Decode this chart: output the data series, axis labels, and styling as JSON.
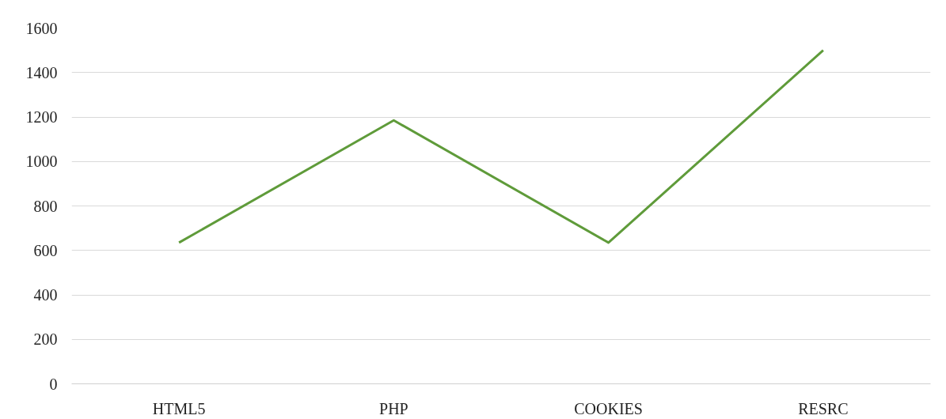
{
  "chart_data": {
    "type": "line",
    "categories": [
      "HTML5",
      "PHP",
      "COOKIES",
      "RESRC"
    ],
    "series": [
      {
        "color": "#5f9b3a",
        "values": [
          635,
          1185,
          635,
          1500
        ]
      }
    ],
    "ylim": [
      0,
      1600
    ],
    "yticks": [
      0,
      200,
      400,
      600,
      800,
      1000,
      1200,
      1400,
      1600
    ],
    "grid": "y",
    "line_style": "solid"
  }
}
